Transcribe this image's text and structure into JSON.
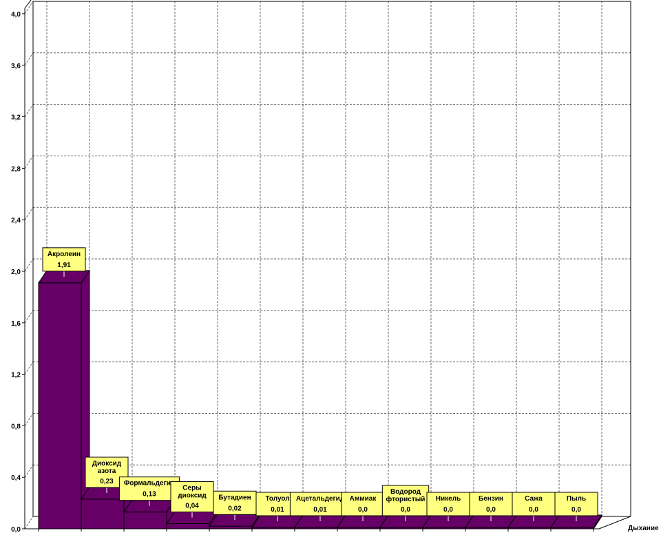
{
  "chart_data": {
    "type": "bar",
    "title": "",
    "xlabel": "",
    "ylabel": "",
    "ylim": [
      0,
      4.0
    ],
    "yticks": [
      "0,0",
      "0,4",
      "0,8",
      "1,2",
      "1,6",
      "2,0",
      "2,4",
      "2,8",
      "3,2",
      "3,6",
      "4,0"
    ],
    "grid": true,
    "three_d": true,
    "bar_color": "#660066",
    "label_color": "#ffff80",
    "series": [
      {
        "name": "Дыхание",
        "items": [
          {
            "name": [
              "Акролеин"
            ],
            "value": 1.91,
            "label": "1,91"
          },
          {
            "name": [
              "Диоксид",
              "азота"
            ],
            "value": 0.23,
            "label": "0,23"
          },
          {
            "name": [
              "Формальдегид"
            ],
            "value": 0.13,
            "label": "0,13"
          },
          {
            "name": [
              "Серы",
              "диоксид"
            ],
            "value": 0.04,
            "label": "0,04"
          },
          {
            "name": [
              "Бутадиен"
            ],
            "value": 0.02,
            "label": "0,02"
          },
          {
            "name": [
              "Толуол"
            ],
            "value": 0.01,
            "label": "0,01"
          },
          {
            "name": [
              "Ацетальдегид"
            ],
            "value": 0.01,
            "label": "0,01"
          },
          {
            "name": [
              "Аммиак"
            ],
            "value": 0.0,
            "label": "0,0"
          },
          {
            "name": [
              "Водород",
              "фтористый"
            ],
            "value": 0.0,
            "label": "0,0"
          },
          {
            "name": [
              "Никель"
            ],
            "value": 0.0,
            "label": "0,0"
          },
          {
            "name": [
              "Бензин"
            ],
            "value": 0.0,
            "label": "0,0"
          },
          {
            "name": [
              "Сажа"
            ],
            "value": 0.0,
            "label": "0,0"
          },
          {
            "name": [
              "Пыль"
            ],
            "value": 0.0,
            "label": "0,0"
          }
        ]
      }
    ]
  }
}
